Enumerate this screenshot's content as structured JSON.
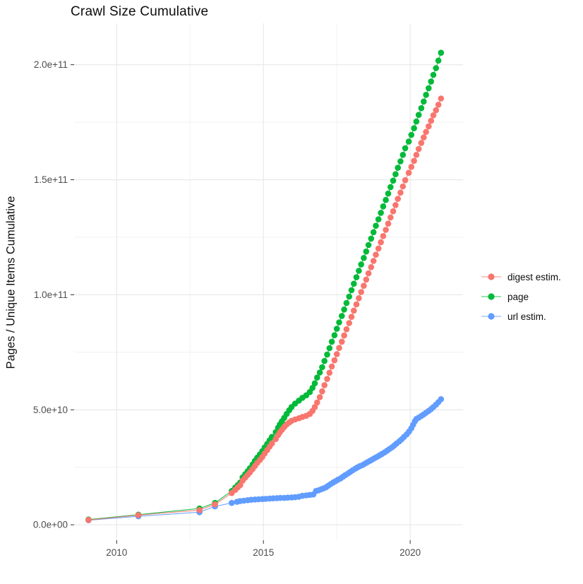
{
  "chart_data": {
    "type": "scatter",
    "title": "Crawl Size Cumulative",
    "xlabel": "",
    "ylabel": "Pages / Unique Items Cumulative",
    "legend_position": "right",
    "grid": true,
    "x_axis": {
      "range": [
        2008.55,
        2021.8
      ],
      "ticks": [
        2010,
        2015,
        2020
      ],
      "tick_labels": [
        "2010",
        "2015",
        "2020"
      ],
      "minor_ticks": [
        2012.5,
        2017.5
      ]
    },
    "y_axis": {
      "range": [
        -6700000000.0,
        218000000000.0
      ],
      "ticks": [
        0,
        50000000000.0,
        100000000000.0,
        150000000000.0,
        200000000000.0
      ],
      "tick_labels": [
        "0.0e+00",
        "5.0e+10",
        "1.0e+11",
        "1.5e+11",
        "2.0e+11"
      ],
      "minor_ticks": [
        25000000000.0,
        75000000000.0,
        125000000000.0,
        175000000000.0
      ]
    },
    "series": [
      {
        "name": "digest estim.",
        "color": "#F8766D",
        "points": [
          [
            2009.04,
            2100000000.0
          ],
          [
            2010.74,
            4200000000.0
          ],
          [
            2012.82,
            6400000000.0
          ],
          [
            2013.35,
            8900000000.0
          ],
          [
            2013.92,
            13800000000.0
          ],
          [
            2014.04,
            15200000000.0
          ],
          [
            2014.13,
            16300000000.0
          ],
          [
            2014.21,
            17300000000.0
          ],
          [
            2014.29,
            19200000000.0
          ],
          [
            2014.38,
            20500000000.0
          ],
          [
            2014.46,
            21700000000.0
          ],
          [
            2014.54,
            22800000000.0
          ],
          [
            2014.63,
            24200000000.0
          ],
          [
            2014.71,
            25600000000.0
          ],
          [
            2014.79,
            26900000000.0
          ],
          [
            2014.88,
            28200000000.0
          ],
          [
            2014.96,
            29500000000.0
          ],
          [
            2015.04,
            31000000000.0
          ],
          [
            2015.13,
            32500000000.0
          ],
          [
            2015.21,
            34000000000.0
          ],
          [
            2015.29,
            35400000000.0
          ],
          [
            2015.42,
            37300000000.0
          ],
          [
            2015.5,
            39000000000.0
          ],
          [
            2015.56,
            40200000000.0
          ],
          [
            2015.63,
            41300000000.0
          ],
          [
            2015.71,
            42500000000.0
          ],
          [
            2015.79,
            43600000000.0
          ],
          [
            2015.88,
            44500000000.0
          ],
          [
            2015.96,
            45200000000.0
          ],
          [
            2016.08,
            45800000000.0
          ],
          [
            2016.21,
            46300000000.0
          ],
          [
            2016.33,
            46900000000.0
          ],
          [
            2016.46,
            47400000000.0
          ],
          [
            2016.58,
            48200000000.0
          ],
          [
            2016.67,
            49500000000.0
          ],
          [
            2016.75,
            51200000000.0
          ],
          [
            2016.83,
            53200000000.0
          ],
          [
            2016.92,
            55500000000.0
          ],
          [
            2017.0,
            58000000000.0
          ],
          [
            2017.08,
            60700000000.0
          ],
          [
            2017.17,
            63400000000.0
          ],
          [
            2017.25,
            66100000000.0
          ],
          [
            2017.33,
            68800000000.0
          ],
          [
            2017.42,
            71500000000.0
          ],
          [
            2017.5,
            74200000000.0
          ],
          [
            2017.58,
            76900000000.0
          ],
          [
            2017.67,
            79600000000.0
          ],
          [
            2017.75,
            82300000000.0
          ],
          [
            2017.83,
            85000000000.0
          ],
          [
            2017.92,
            87700000000.0
          ],
          [
            2018.0,
            90400000000.0
          ],
          [
            2018.08,
            93100000000.0
          ],
          [
            2018.17,
            95800000000.0
          ],
          [
            2018.25,
            98500000000.0
          ],
          [
            2018.33,
            101200000000.0
          ],
          [
            2018.42,
            103900000000.0
          ],
          [
            2018.5,
            106600000000.0
          ],
          [
            2018.58,
            109300000000.0
          ],
          [
            2018.67,
            112000000000.0
          ],
          [
            2018.75,
            114700000000.0
          ],
          [
            2018.83,
            117400000000.0
          ],
          [
            2018.92,
            120100000000.0
          ],
          [
            2019.0,
            122800000000.0
          ],
          [
            2019.08,
            125500000000.0
          ],
          [
            2019.17,
            128200000000.0
          ],
          [
            2019.25,
            130900000000.0
          ],
          [
            2019.33,
            133600000000.0
          ],
          [
            2019.42,
            136300000000.0
          ],
          [
            2019.5,
            139000000000.0
          ],
          [
            2019.58,
            141700000000.0
          ],
          [
            2019.67,
            144400000000.0
          ],
          [
            2019.75,
            147100000000.0
          ],
          [
            2019.83,
            149800000000.0
          ],
          [
            2019.95,
            153000000000.0
          ],
          [
            2020.04,
            155600000000.0
          ],
          [
            2020.13,
            158200000000.0
          ],
          [
            2020.21,
            160800000000.0
          ],
          [
            2020.29,
            163400000000.0
          ],
          [
            2020.38,
            166000000000.0
          ],
          [
            2020.46,
            168400000000.0
          ],
          [
            2020.54,
            170800000000.0
          ],
          [
            2020.63,
            173200000000.0
          ],
          [
            2020.71,
            175600000000.0
          ],
          [
            2020.79,
            178000000000.0
          ],
          [
            2020.88,
            180200000000.0
          ],
          [
            2020.96,
            182600000000.0
          ],
          [
            2021.05,
            185300000000.0
          ]
        ]
      },
      {
        "name": "page",
        "color": "#00BA38",
        "points": [
          [
            2009.04,
            2300000000.0
          ],
          [
            2010.74,
            4400000000.0
          ],
          [
            2012.82,
            7100000000.0
          ],
          [
            2013.35,
            9500000000.0
          ],
          [
            2013.92,
            14700000000.0
          ],
          [
            2014.04,
            16200000000.0
          ],
          [
            2014.13,
            17300000000.0
          ],
          [
            2014.21,
            18400000000.0
          ],
          [
            2014.29,
            20600000000.0
          ],
          [
            2014.38,
            22000000000.0
          ],
          [
            2014.46,
            23300000000.0
          ],
          [
            2014.54,
            24600000000.0
          ],
          [
            2014.63,
            26200000000.0
          ],
          [
            2014.71,
            27800000000.0
          ],
          [
            2014.79,
            29200000000.0
          ],
          [
            2014.88,
            30600000000.0
          ],
          [
            2014.96,
            32000000000.0
          ],
          [
            2015.04,
            33600000000.0
          ],
          [
            2015.13,
            35200000000.0
          ],
          [
            2015.21,
            36700000000.0
          ],
          [
            2015.29,
            38200000000.0
          ],
          [
            2015.42,
            40300000000.0
          ],
          [
            2015.5,
            42200000000.0
          ],
          [
            2015.56,
            43600000000.0
          ],
          [
            2015.63,
            45000000000.0
          ],
          [
            2015.71,
            46500000000.0
          ],
          [
            2015.79,
            48200000000.0
          ],
          [
            2015.88,
            49800000000.0
          ],
          [
            2015.96,
            51200000000.0
          ],
          [
            2016.08,
            52700000000.0
          ],
          [
            2016.21,
            54000000000.0
          ],
          [
            2016.33,
            55200000000.0
          ],
          [
            2016.46,
            56300000000.0
          ],
          [
            2016.58,
            57700000000.0
          ],
          [
            2016.67,
            59500000000.0
          ],
          [
            2016.75,
            61500000000.0
          ],
          [
            2016.83,
            64000000000.0
          ],
          [
            2016.92,
            66200000000.0
          ],
          [
            2017.0,
            68500000000.0
          ],
          [
            2017.08,
            71200000000.0
          ],
          [
            2017.17,
            74000000000.0
          ],
          [
            2017.25,
            76800000000.0
          ],
          [
            2017.33,
            79600000000.0
          ],
          [
            2017.42,
            82400000000.0
          ],
          [
            2017.5,
            85200000000.0
          ],
          [
            2017.58,
            88000000000.0
          ],
          [
            2017.67,
            90800000000.0
          ],
          [
            2017.75,
            93600000000.0
          ],
          [
            2017.83,
            96400000000.0
          ],
          [
            2017.92,
            99200000000.0
          ],
          [
            2018.0,
            102000000000.0
          ],
          [
            2018.08,
            104800000000.0
          ],
          [
            2018.17,
            107600000000.0
          ],
          [
            2018.25,
            110400000000.0
          ],
          [
            2018.33,
            113200000000.0
          ],
          [
            2018.42,
            116000000000.0
          ],
          [
            2018.5,
            118800000000.0
          ],
          [
            2018.58,
            121600000000.0
          ],
          [
            2018.67,
            124400000000.0
          ],
          [
            2018.75,
            127200000000.0
          ],
          [
            2018.83,
            130000000000.0
          ],
          [
            2018.92,
            132800000000.0
          ],
          [
            2019.0,
            135600000000.0
          ],
          [
            2019.08,
            138400000000.0
          ],
          [
            2019.17,
            141200000000.0
          ],
          [
            2019.25,
            144000000000.0
          ],
          [
            2019.33,
            146800000000.0
          ],
          [
            2019.42,
            149600000000.0
          ],
          [
            2019.5,
            152400000000.0
          ],
          [
            2019.58,
            155200000000.0
          ],
          [
            2019.67,
            158000000000.0
          ],
          [
            2019.75,
            160800000000.0
          ],
          [
            2019.83,
            163700000000.0
          ],
          [
            2019.95,
            166600000000.0
          ],
          [
            2020.04,
            169500000000.0
          ],
          [
            2020.13,
            172400000000.0
          ],
          [
            2020.21,
            175300000000.0
          ],
          [
            2020.29,
            178200000000.0
          ],
          [
            2020.38,
            181100000000.0
          ],
          [
            2020.46,
            184000000000.0
          ],
          [
            2020.54,
            186900000000.0
          ],
          [
            2020.63,
            189800000000.0
          ],
          [
            2020.71,
            192700000000.0
          ],
          [
            2020.79,
            195600000000.0
          ],
          [
            2020.88,
            198500000000.0
          ],
          [
            2020.96,
            201800000000.0
          ],
          [
            2021.05,
            205200000000.0
          ]
        ]
      },
      {
        "name": "url estim.",
        "color": "#619CFF",
        "points": [
          [
            2009.04,
            2000000000.0
          ],
          [
            2010.74,
            3700000000.0
          ],
          [
            2012.82,
            5500000000.0
          ],
          [
            2013.35,
            8000000000.0
          ],
          [
            2013.92,
            9500000000.0
          ],
          [
            2014.1,
            10000000000.0
          ],
          [
            2014.2,
            10300000000.0
          ],
          [
            2014.33,
            10500000000.0
          ],
          [
            2014.46,
            10700000000.0
          ],
          [
            2014.58,
            10900000000.0
          ],
          [
            2014.71,
            11000000000.0
          ],
          [
            2014.83,
            11100000000.0
          ],
          [
            2014.96,
            11200000000.0
          ],
          [
            2015.08,
            11300000000.0
          ],
          [
            2015.21,
            11400000000.0
          ],
          [
            2015.33,
            11500000000.0
          ],
          [
            2015.46,
            11600000000.0
          ],
          [
            2015.58,
            11700000000.0
          ],
          [
            2015.71,
            11700000000.0
          ],
          [
            2015.83,
            11800000000.0
          ],
          [
            2015.96,
            11900000000.0
          ],
          [
            2016.08,
            12000000000.0
          ],
          [
            2016.21,
            12200000000.0
          ],
          [
            2016.33,
            12600000000.0
          ],
          [
            2016.46,
            12800000000.0
          ],
          [
            2016.58,
            13000000000.0
          ],
          [
            2016.7,
            13200000000.0
          ],
          [
            2016.79,
            14700000000.0
          ],
          [
            2016.88,
            15000000000.0
          ],
          [
            2016.96,
            15400000000.0
          ],
          [
            2017.04,
            15800000000.0
          ],
          [
            2017.13,
            16300000000.0
          ],
          [
            2017.21,
            17000000000.0
          ],
          [
            2017.29,
            17700000000.0
          ],
          [
            2017.38,
            18400000000.0
          ],
          [
            2017.46,
            19000000000.0
          ],
          [
            2017.54,
            19600000000.0
          ],
          [
            2017.63,
            20200000000.0
          ],
          [
            2017.71,
            20900000000.0
          ],
          [
            2017.79,
            21600000000.0
          ],
          [
            2017.88,
            22300000000.0
          ],
          [
            2017.96,
            23000000000.0
          ],
          [
            2018.04,
            23700000000.0
          ],
          [
            2018.13,
            24400000000.0
          ],
          [
            2018.21,
            25000000000.0
          ],
          [
            2018.29,
            25500000000.0
          ],
          [
            2018.38,
            26000000000.0
          ],
          [
            2018.46,
            26600000000.0
          ],
          [
            2018.54,
            27200000000.0
          ],
          [
            2018.63,
            27800000000.0
          ],
          [
            2018.71,
            28400000000.0
          ],
          [
            2018.79,
            29000000000.0
          ],
          [
            2018.88,
            29600000000.0
          ],
          [
            2018.96,
            30200000000.0
          ],
          [
            2019.04,
            30800000000.0
          ],
          [
            2019.13,
            31500000000.0
          ],
          [
            2019.21,
            32200000000.0
          ],
          [
            2019.29,
            32900000000.0
          ],
          [
            2019.38,
            33700000000.0
          ],
          [
            2019.46,
            34500000000.0
          ],
          [
            2019.54,
            35400000000.0
          ],
          [
            2019.63,
            36300000000.0
          ],
          [
            2019.71,
            37200000000.0
          ],
          [
            2019.79,
            38200000000.0
          ],
          [
            2019.88,
            39300000000.0
          ],
          [
            2019.96,
            40500000000.0
          ],
          [
            2020.04,
            42000000000.0
          ],
          [
            2020.1,
            43500000000.0
          ],
          [
            2020.16,
            45000000000.0
          ],
          [
            2020.21,
            46000000000.0
          ],
          [
            2020.29,
            46600000000.0
          ],
          [
            2020.38,
            47300000000.0
          ],
          [
            2020.46,
            48000000000.0
          ],
          [
            2020.54,
            48700000000.0
          ],
          [
            2020.63,
            49500000000.0
          ],
          [
            2020.71,
            50300000000.0
          ],
          [
            2020.79,
            51200000000.0
          ],
          [
            2020.88,
            52200000000.0
          ],
          [
            2020.96,
            53300000000.0
          ],
          [
            2021.05,
            54600000000.0
          ]
        ]
      }
    ]
  },
  "styles": {
    "background": "#FFFFFF",
    "grid_major": "#E7E7E7",
    "grid_minor": "#F2F2F2",
    "tick_mark_color": "#333333",
    "tick_label_color": "#4D4D4D",
    "text_color": "#0D0D0D"
  }
}
